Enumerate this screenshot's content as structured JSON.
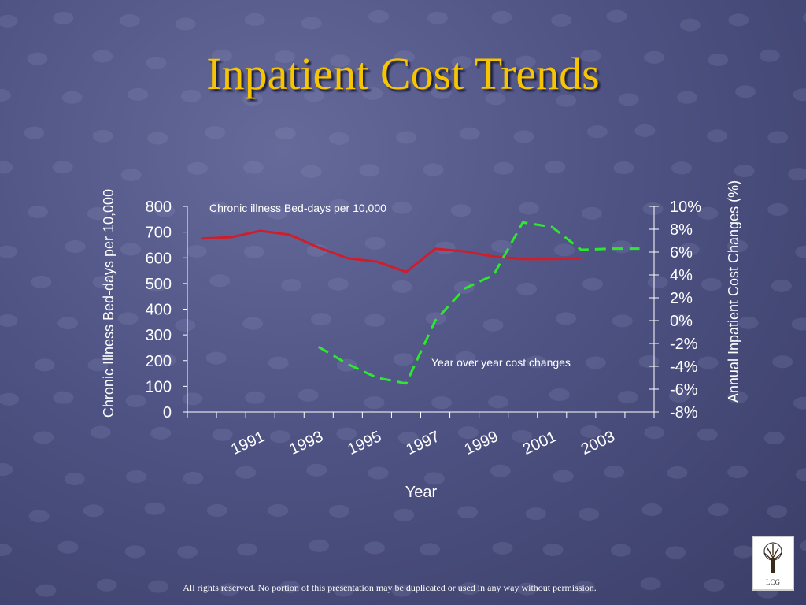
{
  "slide": {
    "title": "Inpatient Cost Trends",
    "footer": "All rights reserved. No portion of this presentation may be duplicated or used in any way without permission.",
    "logo_text": "LCG"
  },
  "colors": {
    "title": "#f7c500",
    "bed_days_line": "#cc1f2e",
    "cost_change_line": "#2ee82e",
    "axis": "#ffffff"
  },
  "chart_data": {
    "type": "line",
    "xlabel": "Year",
    "ylabel": "Chronic Illness Bed-days per 10,000",
    "y2label": "Annual Inpatient Cost Changes (%)",
    "ylim": [
      0,
      800
    ],
    "y2lim": [
      -8,
      10
    ],
    "yticks": [
      "0",
      "100",
      "200",
      "300",
      "400",
      "500",
      "600",
      "700",
      "800"
    ],
    "y2ticks": [
      "-8%",
      "-6%",
      "-4%",
      "-2%",
      "0%",
      "2%",
      "4%",
      "6%",
      "8%",
      "10%"
    ],
    "xticks": [
      "1991",
      "1993",
      "1995",
      "1997",
      "1999",
      "2001",
      "2003"
    ],
    "x": [
      1990,
      1991,
      1992,
      1993,
      1994,
      1995,
      1996,
      1997,
      1998,
      1999,
      2000,
      2001,
      2002,
      2003,
      2004,
      2005
    ],
    "series": [
      {
        "name": "Chronic illness Bed-days per 10,000",
        "axis": "left",
        "style": "solid",
        "values": [
          675,
          680,
          705,
          690,
          640,
          598,
          585,
          545,
          635,
          625,
          605,
          595,
          595,
          598,
          null,
          null
        ]
      },
      {
        "name": "Year over year cost changes",
        "axis": "right",
        "style": "dashed",
        "values": [
          null,
          null,
          null,
          null,
          -2.3,
          -3.8,
          -5.0,
          -5.5,
          0.0,
          2.8,
          4.0,
          8.6,
          8.2,
          6.2,
          6.3,
          6.3
        ]
      }
    ],
    "grid": false,
    "legend": "inline labels"
  }
}
